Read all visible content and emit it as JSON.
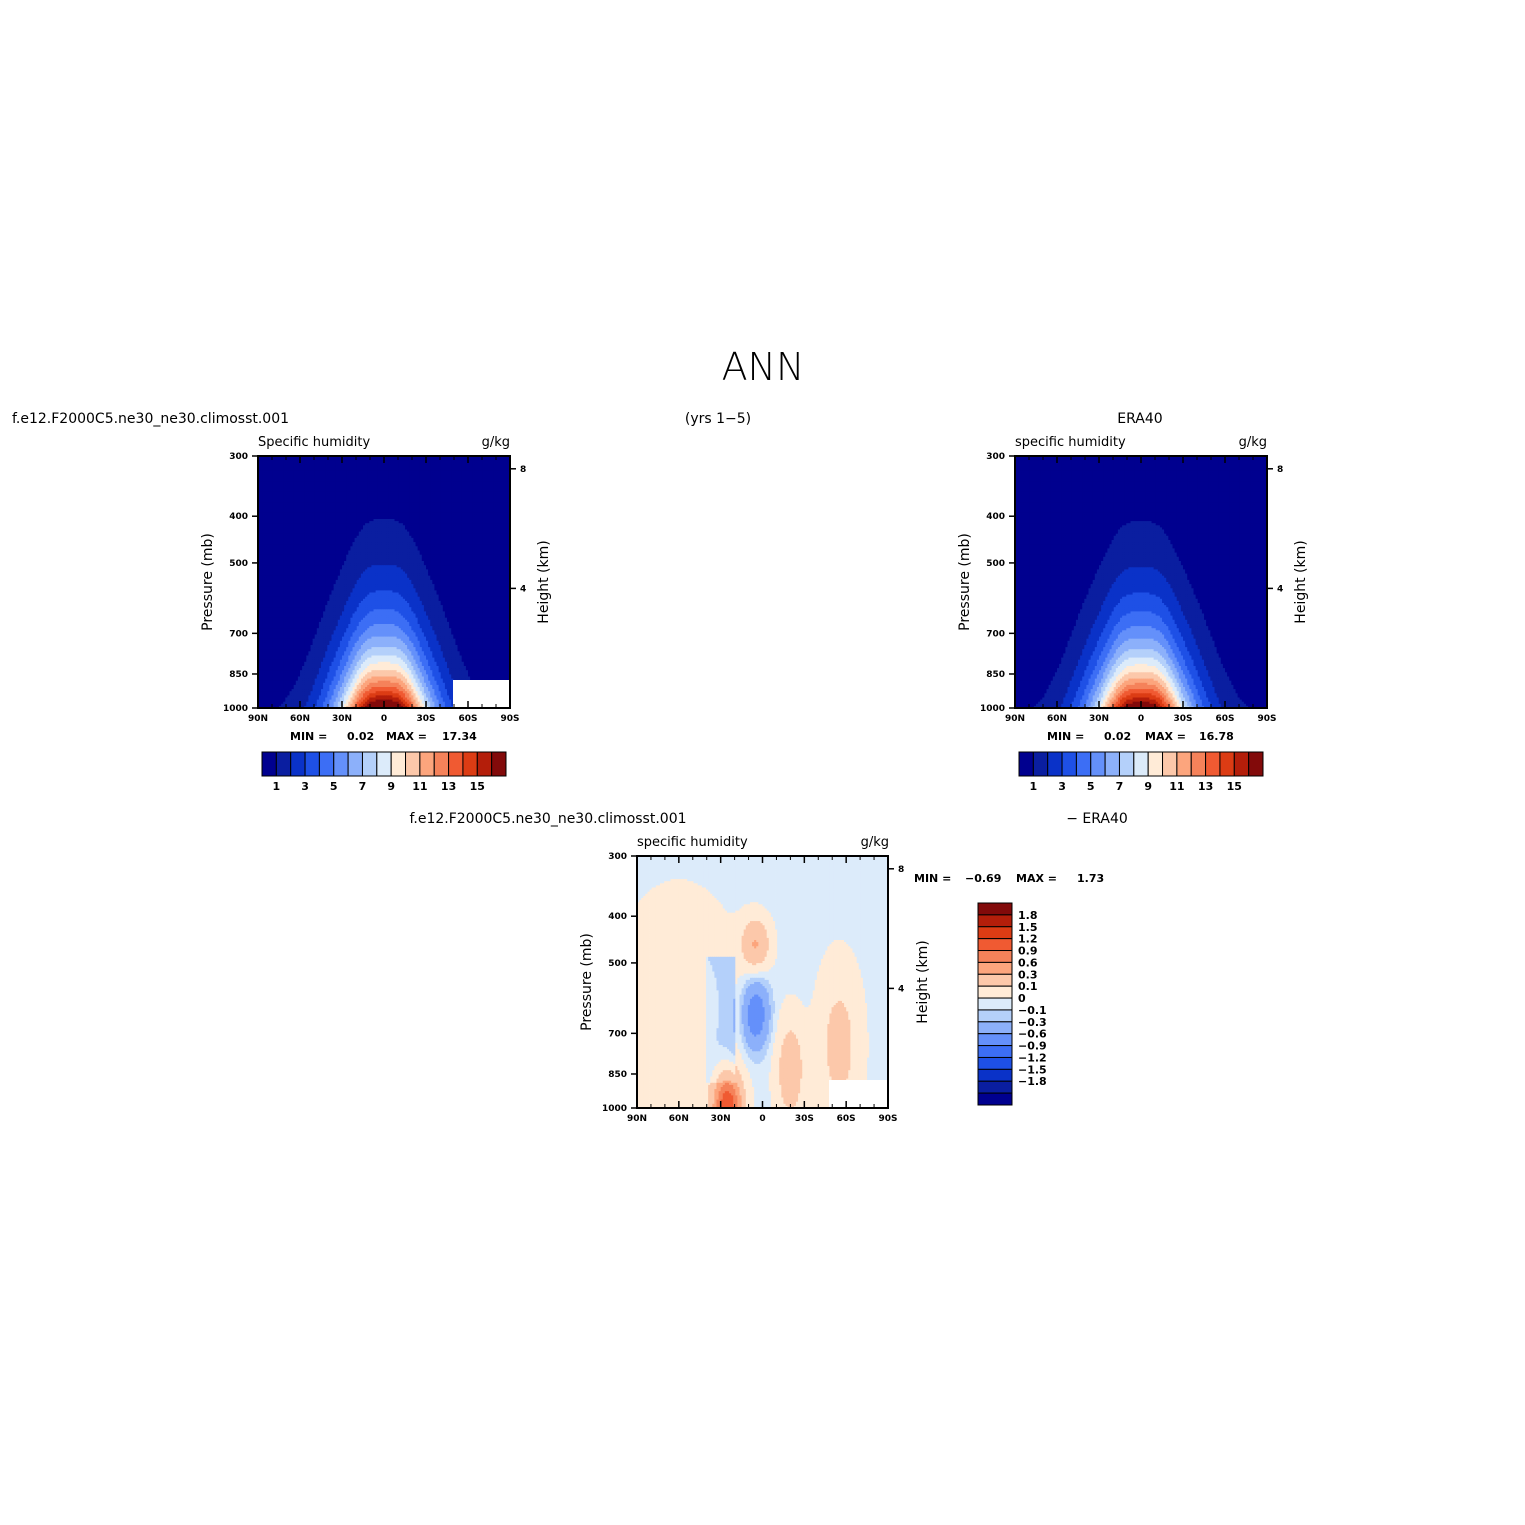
{
  "figure_title": "ANN",
  "headers": {
    "model_case": "f.e12.F2000C5.ne30_ne30.climosst.001",
    "years": "(yrs 1−5)",
    "obs": "ERA40",
    "diff_case": "f.e12.F2000C5.ne30_ne30.climosst.001",
    "diff_suffix": "− ERA40"
  },
  "colors": {
    "abs_palette": [
      "#00008f",
      "#0a1ea0",
      "#0a32c8",
      "#1e50e6",
      "#3c6ef5",
      "#6490fa",
      "#8cb0fa",
      "#b4d0fa",
      "#dcebfa",
      "#ffebd7",
      "#fcc8aa",
      "#fca57d",
      "#f5825a",
      "#f05a32",
      "#dc3c14",
      "#b41e0a",
      "#820a0a"
    ],
    "diff_palette": [
      "#00008f",
      "#0a1ea0",
      "#0a32c8",
      "#1e50e6",
      "#3c6ef5",
      "#6490fa",
      "#8cb0fa",
      "#b4d0fa",
      "#dcebfa",
      "#ffebd7",
      "#fcc8aa",
      "#fca57d",
      "#f5825a",
      "#f05a32",
      "#dc3c14",
      "#b41e0a",
      "#820a0a"
    ]
  },
  "chart_data": [
    {
      "id": "model",
      "type": "contour",
      "left_title": "Specific humidity",
      "right_title": "g/kg",
      "ylabel": "Pressure (mb)",
      "ylabel_right": "Height (km)",
      "x_ticks": [
        "90N",
        "60N",
        "30N",
        "0",
        "30S",
        "60S",
        "90S"
      ],
      "y_ticks": [
        "300",
        "400",
        "500",
        "700",
        "850",
        "1000"
      ],
      "y_ticks_right": [
        "8",
        "4"
      ],
      "min_label": "MIN =",
      "min_value": "0.02",
      "max_label": "MAX =",
      "max_value": "17.34",
      "colorbar_labels": [
        "1",
        "3",
        "5",
        "7",
        "9",
        "11",
        "13",
        "15"
      ],
      "levels": [
        1,
        2,
        3,
        4,
        5,
        6,
        7,
        8,
        9,
        10,
        11,
        12,
        13,
        14,
        15,
        16
      ],
      "field": {
        "peak": 17.34,
        "peak_lat": 0,
        "halfwidth_lat": 35,
        "scale_height": 0.45,
        "ridge_lats": [
          -12,
          12
        ],
        "floor": 0.02
      }
    },
    {
      "id": "obs",
      "type": "contour",
      "left_title": "specific humidity",
      "right_title": "g/kg",
      "ylabel": "Pressure (mb)",
      "ylabel_right": "Height (km)",
      "x_ticks": [
        "90N",
        "60N",
        "30N",
        "0",
        "30S",
        "60S",
        "90S"
      ],
      "y_ticks": [
        "300",
        "400",
        "500",
        "700",
        "850",
        "1000"
      ],
      "y_ticks_right": [
        "8",
        "4"
      ],
      "min_label": "MIN =",
      "min_value": "0.02",
      "max_label": "MAX =",
      "max_value": "16.78",
      "colorbar_labels": [
        "1",
        "3",
        "5",
        "7",
        "9",
        "11",
        "13",
        "15"
      ],
      "levels": [
        1,
        2,
        3,
        4,
        5,
        6,
        7,
        8,
        9,
        10,
        11,
        12,
        13,
        14,
        15,
        16
      ],
      "field": {
        "peak": 16.78,
        "peak_lat": 0,
        "halfwidth_lat": 36,
        "scale_height": 0.45,
        "ridge_lats": [
          -12,
          12
        ],
        "floor": 0.02
      }
    },
    {
      "id": "diff",
      "type": "contour",
      "left_title": "specific humidity",
      "right_title": "g/kg",
      "ylabel": "Pressure (mb)",
      "ylabel_right": "Height (km)",
      "x_ticks": [
        "90N",
        "60N",
        "30N",
        "0",
        "30S",
        "60S",
        "90S"
      ],
      "y_ticks": [
        "300",
        "400",
        "500",
        "700",
        "850",
        "1000"
      ],
      "y_ticks_right": [
        "8",
        "4"
      ],
      "min_label": "MIN =",
      "min_value": "−0.69",
      "max_label": "MAX =",
      "max_value": "1.73",
      "colorbar_labels": [
        "1.8",
        "1.5",
        "1.2",
        "0.9",
        "0.6",
        "0.3",
        "0.1",
        "0",
        "−0.1",
        "−0.3",
        "−0.6",
        "−0.9",
        "−1.2",
        "−1.5",
        "−1.8"
      ],
      "levels": [
        -1.8,
        -1.5,
        -1.2,
        -0.9,
        -0.6,
        -0.3,
        -0.1,
        0,
        0.1,
        0.3,
        0.6,
        0.9,
        1.2,
        1.5,
        1.8
      ]
    }
  ]
}
